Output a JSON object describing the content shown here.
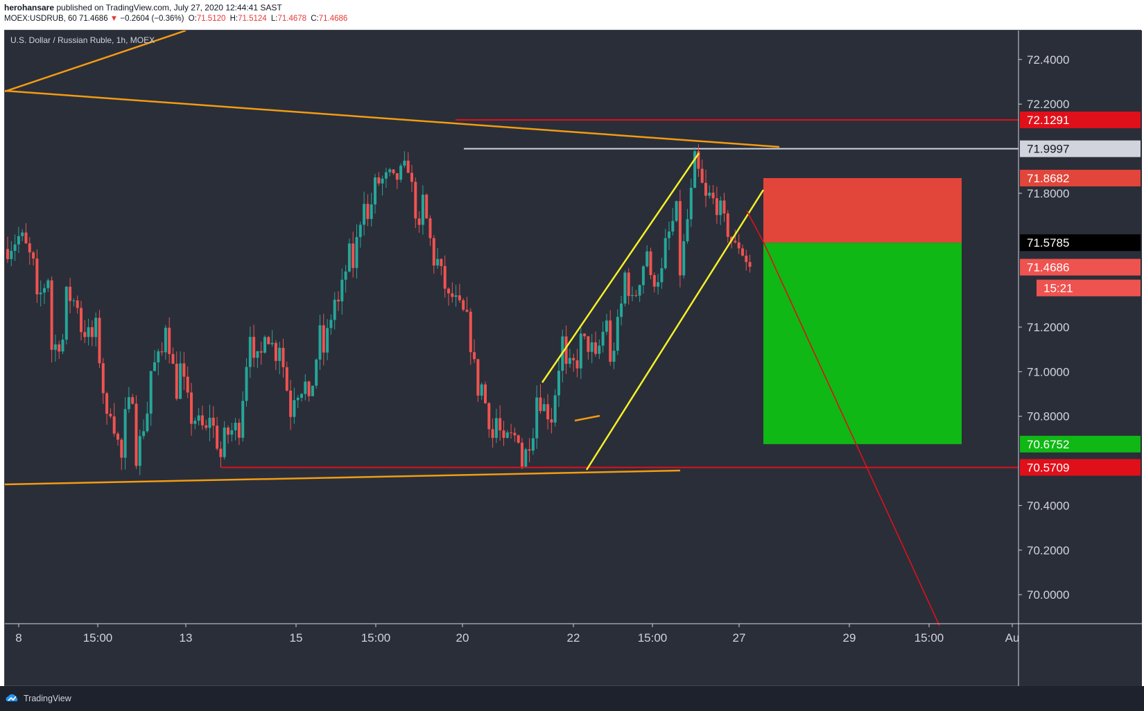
{
  "header": {
    "author": "herohansare",
    "published": "published on TradingView.com, July 27, 2020 12:44:41 SAST",
    "symbol_line": "MOEX:USDRUB, 60",
    "last": "71.4686",
    "change_arrow": "▼",
    "change": "−0.2604 (−0.36%)",
    "o_label": "O:",
    "o": "71.5120",
    "h_label": "H:",
    "h": "71.5124",
    "l_label": "L:",
    "l": "71.4678",
    "c_label": "C:",
    "c": "71.4686"
  },
  "footer": {
    "brand": "TradingView",
    "logo_icon": "tradingview-cloud-icon"
  },
  "colors": {
    "background": "#2a2e39",
    "up_candle": "#26a69a",
    "down_candle": "#ef5350",
    "orange_trend": "#f39c12",
    "yellow_channel": "#f5f228",
    "resistance_red": "#e0101a",
    "stop_zone": "#e2453a",
    "target_zone": "#0fb814",
    "axis_text": "#d1d4dc"
  },
  "chart_data": {
    "type": "candlestick",
    "title": "U.S. Dollar / Russian Ruble, 1h, MOEX",
    "timeframe": "1h",
    "y_axis": {
      "side": "right",
      "ticks": [
        "72.4000",
        "72.2000",
        "71.8000",
        "71.2000",
        "71.0000",
        "70.8000",
        "70.4000",
        "70.2000",
        "70.0000"
      ],
      "range": [
        69.87,
        72.53
      ]
    },
    "x_axis": {
      "ticks": [
        "8",
        "15:00",
        "13",
        "15",
        "15:00",
        "20",
        "22",
        "15:00",
        "27",
        "29",
        "15:00",
        "Au"
      ]
    },
    "price_labels": [
      {
        "value": "72.1291",
        "bg": "#e0101a",
        "fg": "#ffffff"
      },
      {
        "value": "71.9997",
        "bg": "#d1d4dc",
        "fg": "#131722"
      },
      {
        "value": "71.8682",
        "bg": "#e2453a",
        "fg": "#ffffff"
      },
      {
        "value": "71.5785",
        "bg": "#000000",
        "fg": "#ffffff"
      },
      {
        "value": "71.4686",
        "bg": "#ef5350",
        "fg": "#ffffff"
      },
      {
        "value": "70.6752",
        "bg": "#0fb814",
        "fg": "#ffffff"
      },
      {
        "value": "70.5709",
        "bg": "#e0101a",
        "fg": "#ffffff"
      }
    ],
    "countdown": "15:21",
    "levels": {
      "resistance": 72.1291,
      "recent_high": 71.9997,
      "stop_loss": 71.8682,
      "entry": 71.5785,
      "last_price": 71.4686,
      "take_profit": 70.6752,
      "support": 70.5709
    },
    "position": {
      "direction": "short",
      "entry": 71.5785,
      "stop": 71.8682,
      "target": 70.6752
    },
    "candle_waypoints": [
      [
        71.55,
        71.72
      ],
      [
        71.6,
        71.62
      ],
      [
        71.3,
        71.45
      ],
      [
        71.1,
        71.45
      ],
      [
        71.35,
        71.15
      ],
      [
        71.2,
        71.3
      ],
      [
        71.3,
        71.15
      ],
      [
        70.9,
        70.75
      ],
      [
        70.75,
        70.6
      ],
      [
        70.62,
        70.95
      ],
      [
        71.0,
        70.88
      ],
      [
        71.25,
        71.1
      ],
      [
        71.05,
        70.85
      ],
      [
        70.8,
        70.75
      ],
      [
        70.85,
        70.72
      ],
      [
        70.7,
        70.6
      ],
      [
        70.62,
        70.75
      ],
      [
        71.0,
        71.2
      ],
      [
        71.2,
        71.1
      ],
      [
        71.15,
        71.05
      ],
      [
        70.9,
        70.75
      ],
      [
        70.8,
        70.95
      ],
      [
        71.05,
        71.22
      ],
      [
        71.25,
        71.35
      ],
      [
        71.4,
        71.55
      ],
      [
        71.6,
        71.8
      ],
      [
        71.85,
        71.92
      ],
      [
        71.85,
        71.88
      ],
      [
        71.95,
        71.92
      ],
      [
        71.8,
        71.55
      ],
      [
        71.52,
        71.45
      ],
      [
        71.35,
        71.3
      ],
      [
        71.3,
        71.25
      ],
      [
        71.0,
        70.9
      ],
      [
        70.85,
        70.7
      ],
      [
        70.7,
        70.6
      ],
      [
        70.58,
        70.72
      ],
      [
        70.9,
        70.78
      ],
      [
        70.75,
        70.8
      ],
      [
        71.0,
        71.2
      ],
      [
        71.15,
        71.05
      ],
      [
        71.0,
        71.1
      ],
      [
        70.95,
        71.25
      ],
      [
        71.5,
        71.3
      ],
      [
        71.35,
        71.25
      ],
      [
        71.4,
        71.6
      ],
      [
        71.55,
        71.45
      ],
      [
        71.4,
        71.75
      ],
      [
        71.98,
        71.85
      ],
      [
        71.8,
        71.75
      ],
      [
        71.7,
        71.72
      ],
      [
        71.6,
        71.55
      ],
      [
        71.55,
        71.47
      ]
    ]
  }
}
